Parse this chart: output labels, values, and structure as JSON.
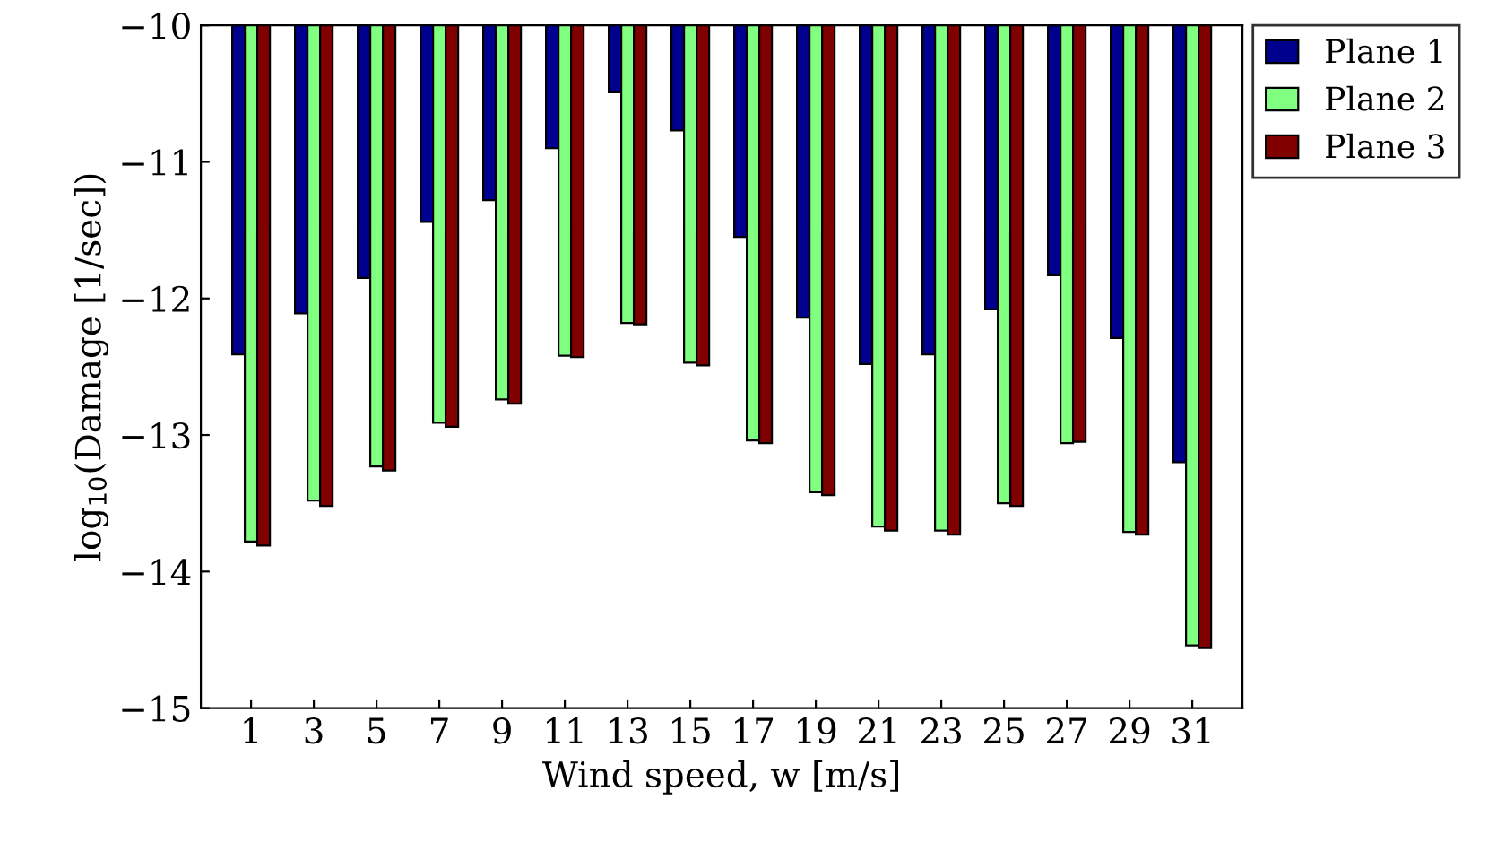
{
  "chart_data": {
    "type": "bar",
    "xlabel": "Wind speed, w [m/s]",
    "ylabel": "log$_{10}$(Damage [1/sec])",
    "categories": [
      "1",
      "3",
      "5",
      "7",
      "9",
      "11",
      "13",
      "15",
      "17",
      "19",
      "21",
      "23",
      "25",
      "27",
      "29",
      "31"
    ],
    "series": [
      {
        "name": "Plane 1",
        "color": "#00008f",
        "values": [
          -12.41,
          -12.11,
          -11.85,
          -11.44,
          -11.28,
          -10.9,
          -10.49,
          -10.77,
          -11.55,
          -12.14,
          -12.48,
          -12.41,
          -12.08,
          -11.83,
          -12.29,
          -13.2
        ]
      },
      {
        "name": "Plane 2",
        "color": "#80ff80",
        "values": [
          -13.78,
          -13.48,
          -13.23,
          -12.91,
          -12.74,
          -12.42,
          -12.18,
          -12.47,
          -13.04,
          -13.42,
          -13.67,
          -13.7,
          -13.5,
          -13.06,
          -13.71,
          -14.54
        ]
      },
      {
        "name": "Plane 3",
        "color": "#800000",
        "values": [
          -13.81,
          -13.52,
          -13.26,
          -12.94,
          -12.77,
          -12.43,
          -12.19,
          -12.49,
          -13.06,
          -13.44,
          -13.7,
          -13.73,
          -13.52,
          -13.05,
          -13.73,
          -14.56
        ]
      }
    ],
    "ylim": [
      -15,
      -10
    ],
    "yticks": [
      -15,
      -14,
      -13,
      -12,
      -11,
      -10
    ],
    "grid": false,
    "legend": "top right"
  }
}
